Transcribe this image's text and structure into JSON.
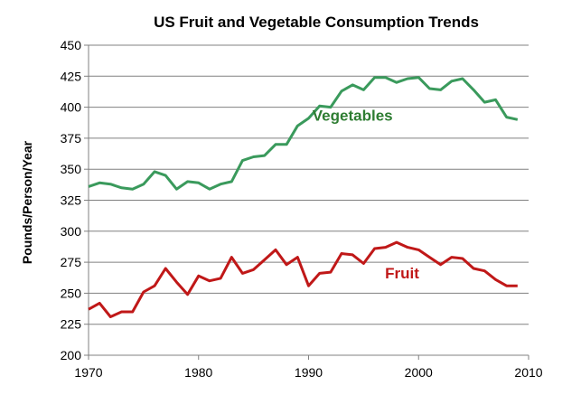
{
  "chart_data": {
    "type": "line",
    "title": "US Fruit and Vegetable Consumption Trends",
    "xlabel": "",
    "ylabel": "Pounds/Person/Year",
    "xlim": [
      1970,
      2010
    ],
    "ylim": [
      200,
      450
    ],
    "xticks": [
      1970,
      1980,
      1990,
      2000,
      2010
    ],
    "yticks": [
      200,
      225,
      250,
      275,
      300,
      325,
      350,
      375,
      400,
      425,
      450
    ],
    "grid": "horizontal",
    "legend": "inline labels",
    "x": [
      1970,
      1971,
      1972,
      1973,
      1974,
      1975,
      1976,
      1977,
      1978,
      1979,
      1980,
      1981,
      1982,
      1983,
      1984,
      1985,
      1986,
      1987,
      1988,
      1989,
      1990,
      1991,
      1992,
      1993,
      1994,
      1995,
      1996,
      1997,
      1998,
      1999,
      2000,
      2001,
      2002,
      2003,
      2004,
      2005,
      2006,
      2007,
      2008,
      2009
    ],
    "series": [
      {
        "name": "Vegetables",
        "color": "#3a9a5c",
        "label_color": "#2e7d32",
        "values": [
          336,
          339,
          338,
          335,
          334,
          338,
          348,
          345,
          334,
          340,
          339,
          334,
          338,
          340,
          357,
          360,
          361,
          370,
          370,
          385,
          391,
          401,
          400,
          413,
          418,
          414,
          424,
          424,
          420,
          423,
          424,
          415,
          414,
          421,
          423,
          414,
          404,
          406,
          392,
          390
        ]
      },
      {
        "name": "Fruit",
        "color": "#c01818",
        "label_color": "#c01818",
        "values": [
          237,
          242,
          231,
          235,
          235,
          251,
          256,
          270,
          259,
          249,
          264,
          260,
          262,
          279,
          266,
          269,
          277,
          285,
          273,
          279,
          256,
          266,
          267,
          282,
          281,
          274,
          286,
          287,
          291,
          287,
          285,
          279,
          273,
          279,
          278,
          270,
          268,
          261,
          256,
          256
        ]
      }
    ]
  }
}
